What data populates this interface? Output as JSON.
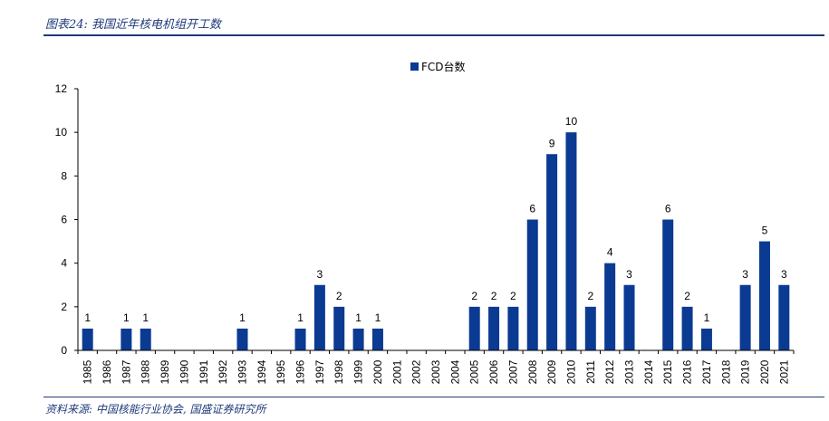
{
  "figure": {
    "title": "图表24: 我国近年核电机组开工数",
    "source": "资料来源: 中国核能行业协会, 国盛证券研究所"
  },
  "colors": {
    "bar": "#0b3a92",
    "rule": "#1f3a7a"
  },
  "chart_data": {
    "type": "bar",
    "categories": [
      "1985",
      "1986",
      "1987",
      "1988",
      "1989",
      "1990",
      "1991",
      "1992",
      "1993",
      "1994",
      "1995",
      "1996",
      "1997",
      "1998",
      "1999",
      "2000",
      "2001",
      "2002",
      "2003",
      "2004",
      "2005",
      "2006",
      "2007",
      "2008",
      "2009",
      "2010",
      "2011",
      "2012",
      "2013",
      "2014",
      "2015",
      "2016",
      "2017",
      "2018",
      "2019",
      "2020",
      "2021"
    ],
    "series": [
      {
        "name": "FCD台数",
        "values": [
          1,
          0,
          1,
          1,
          0,
          0,
          0,
          0,
          1,
          0,
          0,
          1,
          3,
          2,
          1,
          1,
          0,
          0,
          0,
          0,
          2,
          2,
          2,
          6,
          9,
          10,
          2,
          4,
          3,
          0,
          6,
          2,
          1,
          0,
          3,
          5,
          3
        ]
      }
    ],
    "yticks": [
      0,
      2,
      4,
      6,
      8,
      10,
      12
    ],
    "ylim": [
      0,
      12
    ],
    "legend": "top-center",
    "grid": false
  }
}
